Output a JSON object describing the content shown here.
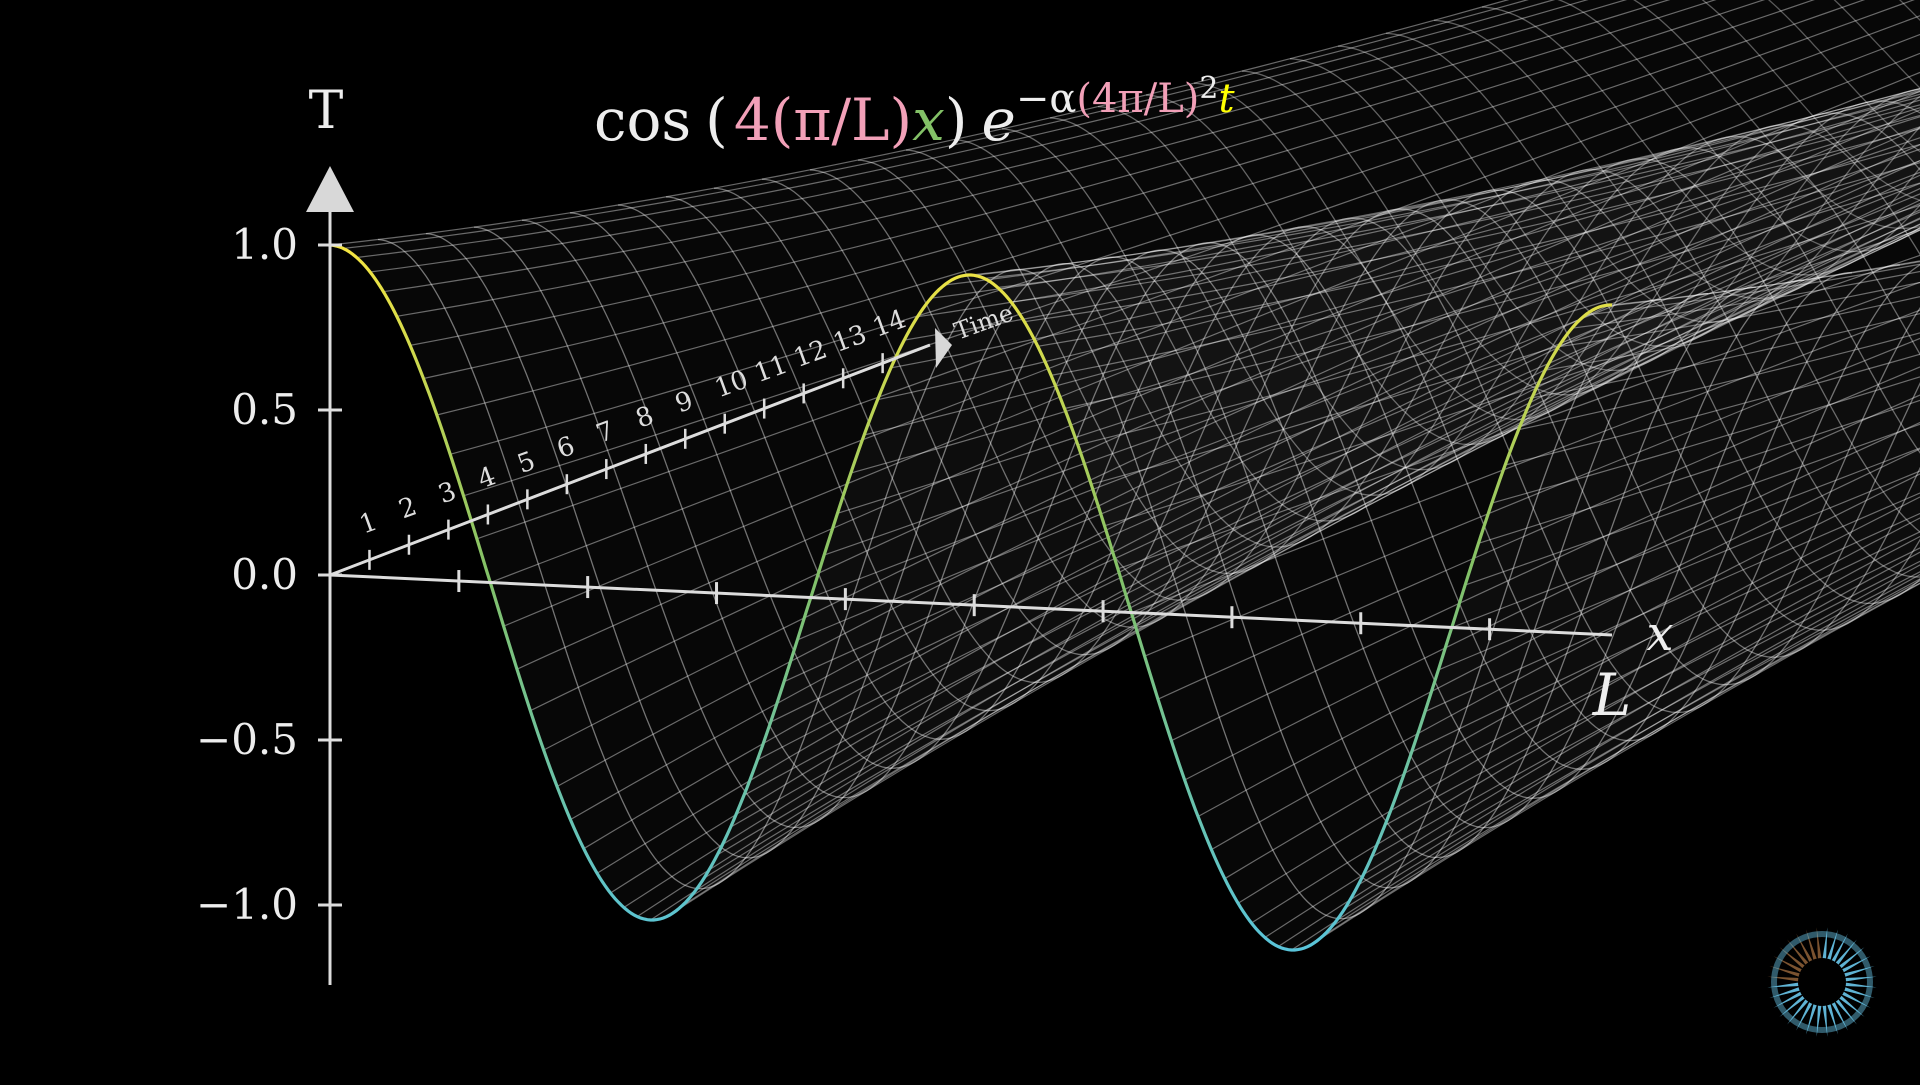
{
  "formula": {
    "cos": "cos",
    "paren_open": "(",
    "coef": "4",
    "pi_over_L": "(π/L)",
    "x": "x",
    "paren_close": ")",
    "e": "e",
    "exp_minus_alpha": "−α",
    "exp_group": "(4π/L)",
    "exp_power": "2",
    "exp_t": "t"
  },
  "axes": {
    "t_axis_label": "T",
    "x_axis_label": "x",
    "x_end_label": "L",
    "time_axis_label": "Time",
    "y_tick_labels": [
      "1.0",
      "0.5",
      "0.0",
      "−0.5",
      "−1.0"
    ],
    "time_tick_labels": [
      "1",
      "2",
      "3",
      "4",
      "5",
      "6",
      "7",
      "8",
      "9",
      "10",
      "11",
      "12",
      "13",
      "14"
    ]
  },
  "colors": {
    "background": "#000000",
    "axis": "#dddddd",
    "mesh": "#ffffff",
    "coef_pink": "#f2a0b8",
    "x_green": "#83c167",
    "t_yellow": "#ffff00",
    "curve_high": "#f4e542",
    "curve_mid": "#83c167",
    "curve_low": "#58c4dd",
    "logo_brown": "#7b5330",
    "logo_blue": "#5fb3d4"
  },
  "chart_data": {
    "type": "surface",
    "function": "cos(4(π/L)x) e^{-α(4π/L)^2 t}",
    "z_axis_range": [
      -1.0,
      1.0
    ],
    "z_ticks": [
      1.0,
      0.5,
      0.0,
      -0.5,
      -1.0
    ],
    "time_ticks": [
      1,
      2,
      3,
      4,
      5,
      6,
      7,
      8,
      9,
      10,
      11,
      12,
      13,
      14
    ],
    "x_range": [
      "0",
      "L"
    ],
    "x_tick_count": 9,
    "initial_curve": "cos(4πx/L)"
  }
}
